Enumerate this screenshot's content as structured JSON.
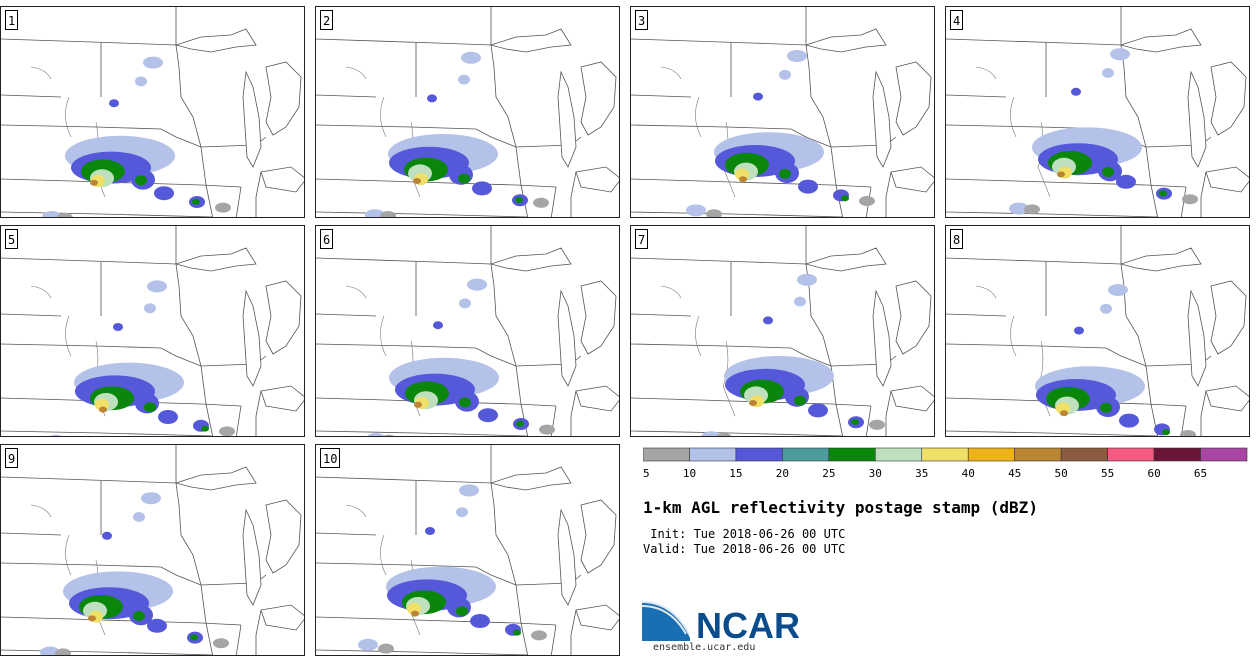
{
  "panels": [
    {
      "label": "1",
      "lon_offset": -0.3,
      "lat_offset": 0.0
    },
    {
      "label": "2",
      "lon_offset": -0.1,
      "lat_offset": 0.1
    },
    {
      "label": "3",
      "lon_offset": 0.2,
      "lat_offset": 0.2
    },
    {
      "label": "4",
      "lon_offset": 0.4,
      "lat_offset": 0.3
    },
    {
      "label": "5",
      "lon_offset": -0.1,
      "lat_offset": -0.2
    },
    {
      "label": "6",
      "lon_offset": 0.0,
      "lat_offset": -0.1
    },
    {
      "label": "7",
      "lon_offset": 0.6,
      "lat_offset": 0.0
    },
    {
      "label": "8",
      "lon_offset": 0.4,
      "lat_offset": -0.3
    },
    {
      "label": "9",
      "lon_offset": -0.4,
      "lat_offset": 0.1
    },
    {
      "label": "10",
      "lon_offset": -0.2,
      "lat_offset": 0.3
    }
  ],
  "legend": {
    "levels": [
      "5",
      "10",
      "15",
      "20",
      "25",
      "30",
      "35",
      "40",
      "45",
      "50",
      "55",
      "60",
      "65"
    ],
    "colors": [
      "#a5a5a5",
      "#b4c2ea",
      "#5558d8",
      "#4c9c9c",
      "#0a870a",
      "#bfe0bf",
      "#f0e068",
      "#f0b219",
      "#bb8533",
      "#8c5a3e",
      "#f55b80",
      "#6b1539",
      "#a946a3"
    ]
  },
  "title": "1-km AGL reflectivity postage stamp (dBZ)",
  "init_text": " Init: Tue 2018-06-26 00 UTC",
  "valid_text": "Valid: Tue 2018-06-26 00 UTC",
  "logo_text": "NCAR",
  "logo_url": "ensemble.ucar.edu"
}
